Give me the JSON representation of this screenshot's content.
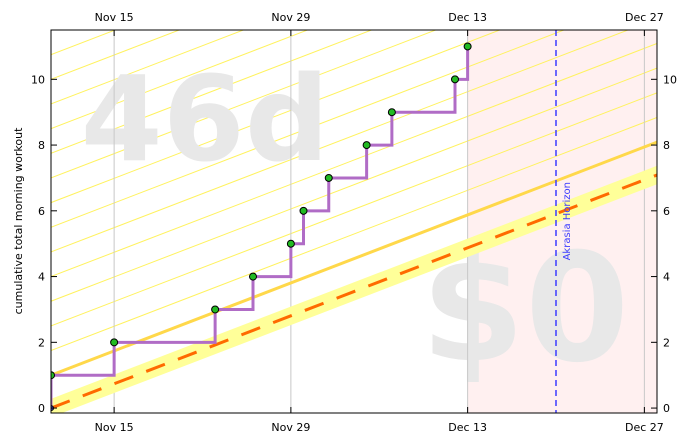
{
  "chart_data": {
    "type": "line",
    "title": "",
    "ylabel": "cumulative total morning workout",
    "xlim_days": [
      -4,
      44
    ],
    "ylim": [
      -0.15,
      11.5
    ],
    "x_ticks": [
      {
        "day": 1,
        "label": "Nov 15"
      },
      {
        "day": 15,
        "label": "Nov 29"
      },
      {
        "day": 29,
        "label": "Dec 13"
      },
      {
        "day": 43,
        "label": "Dec 27"
      }
    ],
    "y_ticks": [
      0,
      2,
      4,
      6,
      8,
      10
    ],
    "datapoints": [
      {
        "day": -4,
        "value": 0
      },
      {
        "day": -4,
        "value": 1
      },
      {
        "day": 1,
        "value": 2
      },
      {
        "day": 9,
        "value": 3
      },
      {
        "day": 12,
        "value": 4
      },
      {
        "day": 15,
        "value": 5
      },
      {
        "day": 16,
        "value": 6
      },
      {
        "day": 18,
        "value": 7
      },
      {
        "day": 21,
        "value": 8
      },
      {
        "day": 23,
        "value": 9
      },
      {
        "day": 28,
        "value": 10
      },
      {
        "day": 29,
        "value": 11
      }
    ],
    "road": {
      "start": {
        "day": -4,
        "value": 0
      },
      "slope_per_day": 0.1477
    },
    "lane_offset": 1.0,
    "akrasia_horizon_day": 36,
    "akrasia_horizon_label": "Akrasia Horizon",
    "watermarks": {
      "days_left": "46d",
      "pledge": "$0"
    },
    "colors": {
      "steps": "#b06cc6",
      "point_fill": "#22bb22",
      "road_dash": "#ff6a00",
      "road_band": "#ffff99",
      "lane_line": "#ffd84a",
      "guide_lines": "#fff25e",
      "horizon": "#3b3bff",
      "future_shade": "#fff0f0"
    }
  }
}
